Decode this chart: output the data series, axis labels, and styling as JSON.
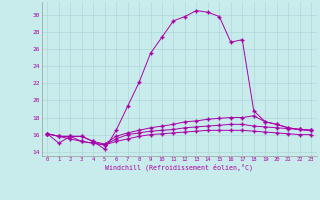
{
  "xlabel": "Windchill (Refroidissement éolien,°C)",
  "background_color": "#c8ecec",
  "grid_color": "#b0d8d8",
  "line_color": "#aa00aa",
  "x": [
    0,
    1,
    2,
    3,
    4,
    5,
    6,
    7,
    8,
    9,
    10,
    11,
    12,
    13,
    14,
    15,
    16,
    17,
    18,
    19,
    20,
    21,
    22,
    23
  ],
  "series1": [
    16.1,
    15.0,
    15.8,
    15.8,
    15.2,
    14.3,
    16.5,
    19.3,
    22.1,
    25.5,
    27.4,
    29.3,
    29.8,
    30.5,
    30.3,
    29.8,
    26.8,
    27.1,
    18.8,
    17.5,
    17.2,
    16.8,
    16.6,
    16.5
  ],
  "series2": [
    16.1,
    15.8,
    15.8,
    15.8,
    15.2,
    14.9,
    15.8,
    16.2,
    16.5,
    16.8,
    17.0,
    17.2,
    17.5,
    17.6,
    17.8,
    17.9,
    18.0,
    18.0,
    18.2,
    17.5,
    17.2,
    16.8,
    16.6,
    16.5
  ],
  "series3": [
    16.1,
    15.8,
    15.8,
    15.2,
    15.0,
    14.8,
    15.5,
    16.0,
    16.2,
    16.4,
    16.5,
    16.6,
    16.8,
    16.9,
    17.0,
    17.1,
    17.2,
    17.2,
    17.0,
    16.9,
    16.8,
    16.7,
    16.6,
    16.5
  ],
  "series4": [
    16.1,
    15.8,
    15.5,
    15.2,
    15.0,
    14.8,
    15.2,
    15.5,
    15.8,
    16.0,
    16.1,
    16.2,
    16.3,
    16.4,
    16.5,
    16.5,
    16.5,
    16.5,
    16.4,
    16.3,
    16.2,
    16.1,
    16.0,
    16.0
  ],
  "ylim": [
    13.5,
    31.5
  ],
  "yticks": [
    14,
    16,
    18,
    20,
    22,
    24,
    26,
    28,
    30
  ],
  "xlim": [
    -0.5,
    23.5
  ],
  "xtick_labels": [
    "0",
    "1",
    "2",
    "3",
    "4",
    "5",
    "6",
    "7",
    "8",
    "9",
    "10",
    "11",
    "12",
    "13",
    "14",
    "15",
    "16",
    "17",
    "18",
    "19",
    "20",
    "21",
    "22",
    "23"
  ]
}
